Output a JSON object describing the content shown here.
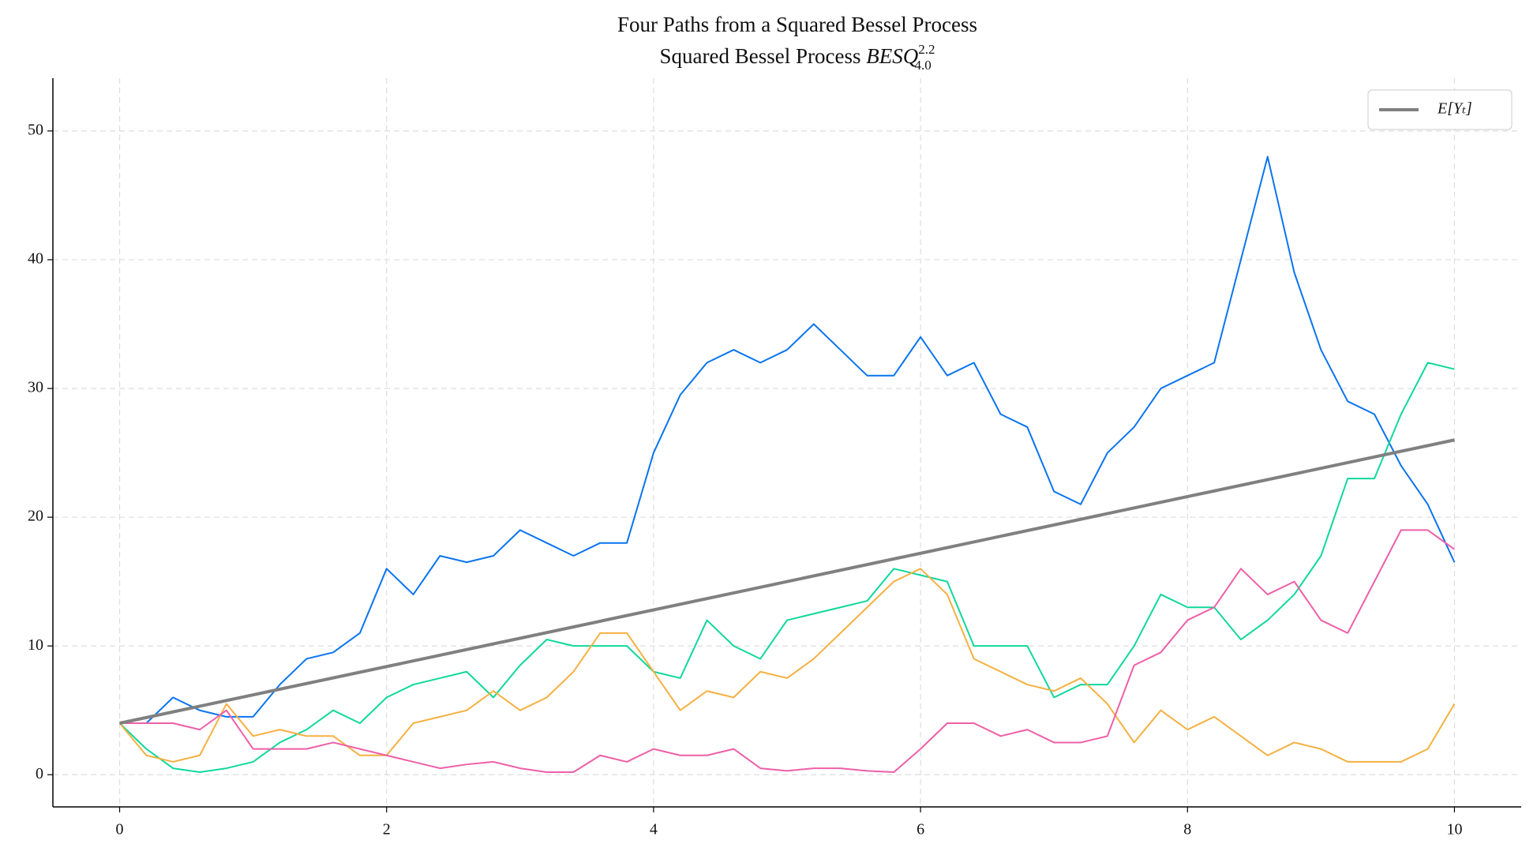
{
  "chart_data": {
    "type": "line",
    "title": "Four Paths from a Squared Bessel Process",
    "subtitle": "Squared Bessel Process",
    "subtitle_math": {
      "base": "BESQ",
      "sup": "2.2",
      "sub": "4.0"
    },
    "x": [
      0,
      0.2,
      0.4,
      0.6,
      0.8,
      1,
      1.2,
      1.4,
      1.6,
      1.8,
      2,
      2.2,
      2.4,
      2.6,
      2.8,
      3,
      3.2,
      3.4,
      3.6,
      3.8,
      4,
      4.2,
      4.4,
      4.6,
      4.8,
      5,
      5.2,
      5.4,
      5.6,
      5.8,
      6,
      6.2,
      6.4,
      6.6,
      6.8,
      7,
      7.2,
      7.4,
      7.6,
      7.8,
      8,
      8.2,
      8.4,
      8.6,
      8.8,
      9,
      9.2,
      9.4,
      9.6,
      9.8,
      10
    ],
    "series": [
      {
        "color": "#0a74f0",
        "values": [
          4,
          4,
          6,
          5,
          4.5,
          4.5,
          7,
          9,
          9.5,
          11,
          16,
          14,
          17,
          16.5,
          17,
          19,
          18,
          17,
          18,
          18,
          25,
          29.5,
          32,
          33,
          32,
          33,
          35,
          33,
          31,
          31,
          34,
          31,
          32,
          28,
          27,
          22,
          21,
          25,
          27,
          30,
          31,
          32,
          40,
          48,
          39,
          33,
          29,
          28,
          24,
          21,
          16.5
        ]
      },
      {
        "color": "#10d89a",
        "values": [
          4,
          2,
          0.5,
          0.2,
          0.5,
          1,
          2.5,
          3.5,
          5,
          4,
          6,
          7,
          7.5,
          8,
          6,
          8.5,
          10.5,
          10,
          10,
          10,
          8,
          7.5,
          12,
          10,
          9,
          12,
          12.5,
          13,
          13.5,
          16,
          15.5,
          15,
          10,
          10,
          10,
          6,
          7,
          7,
          10,
          14,
          13,
          13,
          10.5,
          12,
          14,
          17,
          23,
          23,
          28,
          32,
          31.5
        ]
      },
      {
        "color": "#f5b041",
        "values": [
          4,
          1.5,
          1,
          1.5,
          5.5,
          3,
          3.5,
          3,
          3,
          1.5,
          1.5,
          4,
          4.5,
          5,
          6.5,
          5,
          6,
          8,
          11,
          11,
          8,
          5,
          6.5,
          6,
          8,
          7.5,
          9,
          11,
          13,
          15,
          16,
          14,
          9,
          8,
          7,
          6.5,
          7.5,
          5.5,
          2.5,
          5,
          3.5,
          4.5,
          3,
          1.5,
          2.5,
          2,
          1,
          1,
          1,
          2,
          5.5
        ]
      },
      {
        "color": "#ee5fa7",
        "values": [
          4,
          4,
          4,
          3.5,
          5,
          2,
          2,
          2,
          2.5,
          2,
          1.5,
          1,
          0.5,
          0.8,
          1,
          0.5,
          0.2,
          0.2,
          1.5,
          1,
          2,
          1.5,
          1.5,
          2,
          0.5,
          0.3,
          0.5,
          0.5,
          0.3,
          0.2,
          2,
          4,
          4,
          3,
          3.5,
          2.5,
          2.5,
          3,
          8.5,
          9.5,
          12,
          13,
          16,
          14,
          15,
          12,
          11,
          15,
          19,
          19,
          17.5
        ]
      },
      {
        "name": "E[Yₜ]",
        "color": "#808080",
        "x": [
          0,
          10
        ],
        "values": [
          4,
          26
        ]
      }
    ],
    "xlim": [
      -0.5,
      10.5
    ],
    "ylim": [
      -2.5,
      54.1
    ],
    "xticks": [
      0,
      2,
      4,
      6,
      8,
      10
    ],
    "yticks": [
      0,
      10,
      20,
      30,
      40,
      50
    ],
    "grid": true,
    "legend": "upper right"
  }
}
